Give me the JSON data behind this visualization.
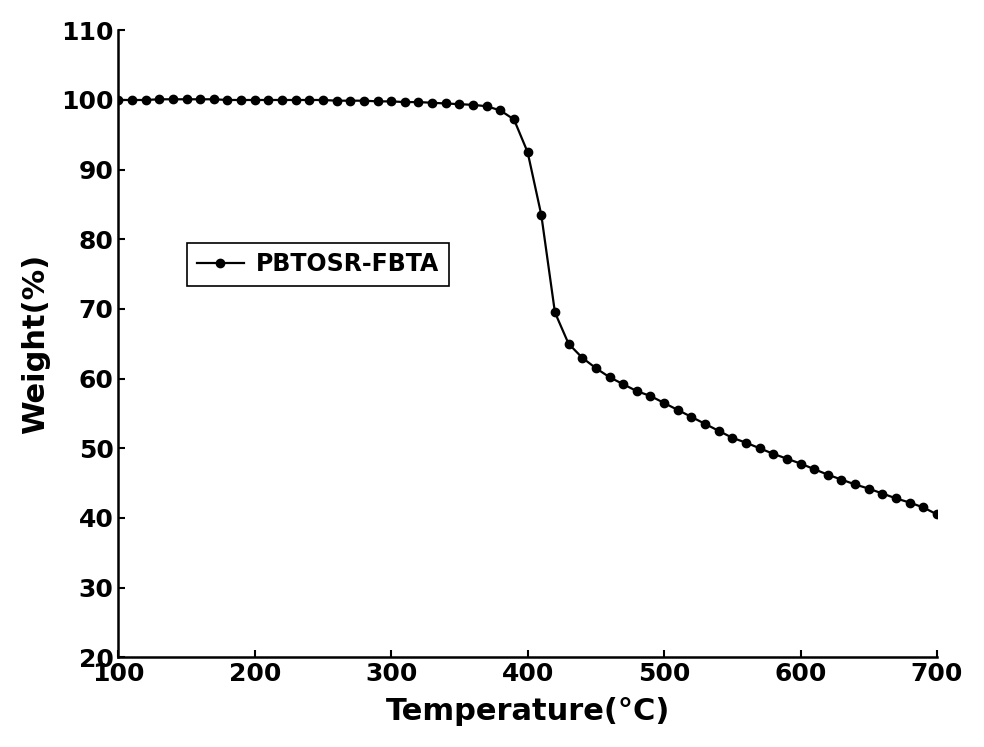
{
  "title": "",
  "xlabel": "Temperature(°C)",
  "ylabel": "Weight(%)",
  "xlim": [
    100,
    700
  ],
  "ylim": [
    20,
    110
  ],
  "xticks": [
    100,
    200,
    300,
    400,
    500,
    600,
    700
  ],
  "yticks": [
    20,
    30,
    40,
    50,
    60,
    70,
    80,
    90,
    100,
    110
  ],
  "legend_label": "PBTOSR-FBTA",
  "line_color": "#000000",
  "marker": "o",
  "marker_color": "#000000",
  "marker_size": 6,
  "line_width": 1.6,
  "x_data": [
    100,
    110,
    120,
    130,
    140,
    150,
    160,
    170,
    180,
    190,
    200,
    210,
    220,
    230,
    240,
    250,
    260,
    270,
    280,
    290,
    300,
    310,
    320,
    330,
    340,
    350,
    360,
    370,
    380,
    390,
    400,
    410,
    420,
    430,
    440,
    450,
    460,
    470,
    480,
    490,
    500,
    510,
    520,
    530,
    540,
    550,
    560,
    570,
    580,
    590,
    600,
    610,
    620,
    630,
    640,
    650,
    660,
    670,
    680,
    690,
    700
  ],
  "y_data": [
    100.0,
    100.0,
    100.0,
    100.1,
    100.1,
    100.1,
    100.1,
    100.1,
    100.0,
    100.0,
    100.0,
    100.0,
    100.0,
    100.0,
    100.0,
    100.0,
    99.9,
    99.9,
    99.9,
    99.8,
    99.8,
    99.7,
    99.7,
    99.6,
    99.5,
    99.4,
    99.3,
    99.1,
    98.5,
    97.2,
    92.5,
    83.5,
    69.5,
    65.0,
    63.0,
    61.5,
    60.2,
    59.2,
    58.2,
    57.5,
    56.5,
    55.5,
    54.5,
    53.5,
    52.5,
    51.5,
    50.8,
    50.0,
    49.2,
    48.5,
    47.8,
    47.0,
    46.2,
    45.5,
    44.8,
    44.2,
    43.5,
    42.8,
    42.2,
    41.5,
    40.5
  ]
}
